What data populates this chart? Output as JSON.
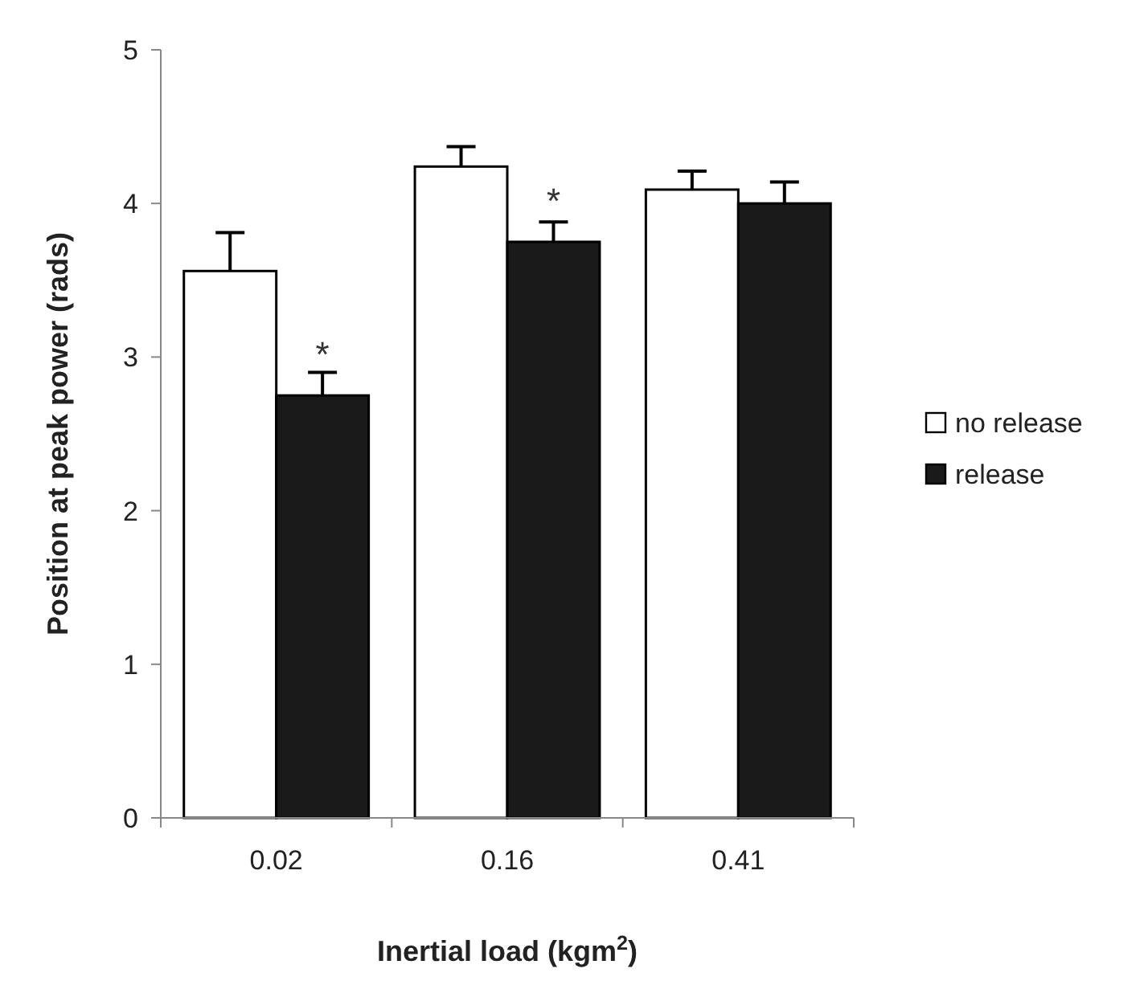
{
  "chart_data": {
    "type": "bar",
    "xlabel": "Inertial load (kgm$^{2}$)",
    "ylabel": "Position at peak power (rads)",
    "categories": [
      "0.02",
      "0.16",
      "0.41"
    ],
    "series": [
      {
        "name": "no release",
        "color": "#ffffff",
        "values": [
          3.56,
          4.24,
          4.09
        ],
        "errors": [
          [
            3.56,
            3.81
          ],
          [
            4.24,
            4.37
          ],
          [
            4.09,
            4.21
          ]
        ]
      },
      {
        "name": "release",
        "color": "#1a1a1a",
        "values": [
          2.75,
          3.75,
          4.0
        ],
        "errors": [
          [
            2.75,
            2.9
          ],
          [
            3.75,
            3.88
          ],
          [
            4.0,
            4.14
          ]
        ]
      }
    ],
    "ylim": [
      0,
      5
    ],
    "yticks": [
      0,
      1,
      2,
      3,
      4,
      5
    ],
    "legend": "right",
    "grid": false,
    "annotations": [
      {
        "text": "*",
        "x": "0.02",
        "y": 3.1
      },
      {
        "text": "*",
        "x": "0.16",
        "y": 4.1
      }
    ]
  }
}
